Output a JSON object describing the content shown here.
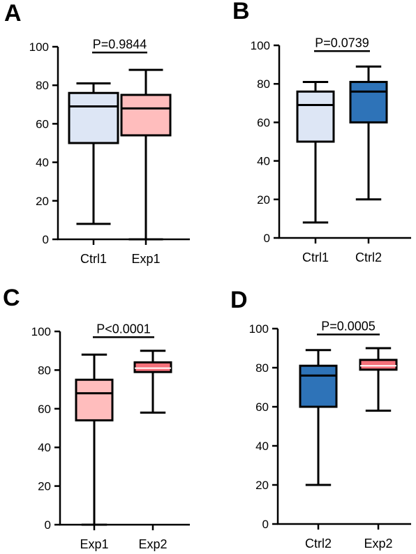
{
  "chart_data": [
    {
      "panel": "A",
      "type": "box",
      "categories": [
        "Ctrl1",
        "Exp1"
      ],
      "ylim": [
        0,
        100
      ],
      "yticks": [
        "0",
        "20",
        "40",
        "60",
        "80",
        "100"
      ],
      "boxes": [
        {
          "label": "Ctrl1",
          "min": 8,
          "q1": 50,
          "median": 69,
          "q3": 76,
          "max": 81,
          "color": "#dde6f5",
          "median_color": "#000000"
        },
        {
          "label": "Exp1",
          "min": 0,
          "q1": 54,
          "median": 68,
          "q3": 75,
          "max": 88,
          "color": "#ffbdbd",
          "median_color": "#000000"
        }
      ],
      "comparison": {
        "from": 0,
        "to": 1,
        "text": "P=0.9844",
        "y": 97
      }
    },
    {
      "panel": "B",
      "type": "box",
      "categories": [
        "Ctrl1",
        "Ctrl2"
      ],
      "ylim": [
        0,
        100
      ],
      "yticks": [
        "0",
        "20",
        "40",
        "60",
        "80",
        "100"
      ],
      "boxes": [
        {
          "label": "Ctrl1",
          "min": 8,
          "q1": 50,
          "median": 69,
          "q3": 76,
          "max": 81,
          "color": "#dde6f5",
          "median_color": "#000000"
        },
        {
          "label": "Ctrl2",
          "min": 20,
          "q1": 60,
          "median": 76,
          "q3": 81,
          "max": 89,
          "color": "#2e73b8",
          "median_color": "#000000"
        }
      ],
      "comparison": {
        "from": 0,
        "to": 1,
        "text": "P=0.0739",
        "y": 97
      }
    },
    {
      "panel": "C",
      "type": "box",
      "categories": [
        "Exp1",
        "Exp2"
      ],
      "ylim": [
        0,
        100
      ],
      "yticks": [
        "0",
        "20",
        "40",
        "60",
        "80",
        "100"
      ],
      "boxes": [
        {
          "label": "Exp1",
          "min": 0,
          "q1": 54,
          "median": 68,
          "q3": 75,
          "max": 88,
          "color": "#ffbdbd",
          "median_color": "#000000"
        },
        {
          "label": "Exp2",
          "min": 58,
          "q1": 79,
          "median": 81,
          "q3": 84,
          "max": 90,
          "color": "#f4707a",
          "median_color": "#ffffff"
        }
      ],
      "comparison": {
        "from": 0,
        "to": 1,
        "text": "P<0.0001",
        "y": 97
      }
    },
    {
      "panel": "D",
      "type": "box",
      "categories": [
        "Ctrl2",
        "Exp2"
      ],
      "ylim": [
        0,
        100
      ],
      "yticks": [
        "0",
        "20",
        "40",
        "60",
        "80",
        "100"
      ],
      "boxes": [
        {
          "label": "Ctrl2",
          "min": 20,
          "q1": 60,
          "median": 76,
          "q3": 81,
          "max": 89,
          "color": "#2e73b8",
          "median_color": "#000000"
        },
        {
          "label": "Exp2",
          "min": 58,
          "q1": 79,
          "median": 81,
          "q3": 84,
          "max": 90,
          "color": "#f4707a",
          "median_color": "#ffffff"
        }
      ],
      "comparison": {
        "from": 0,
        "to": 1,
        "text": "P=0.0005",
        "y": 97
      }
    }
  ]
}
